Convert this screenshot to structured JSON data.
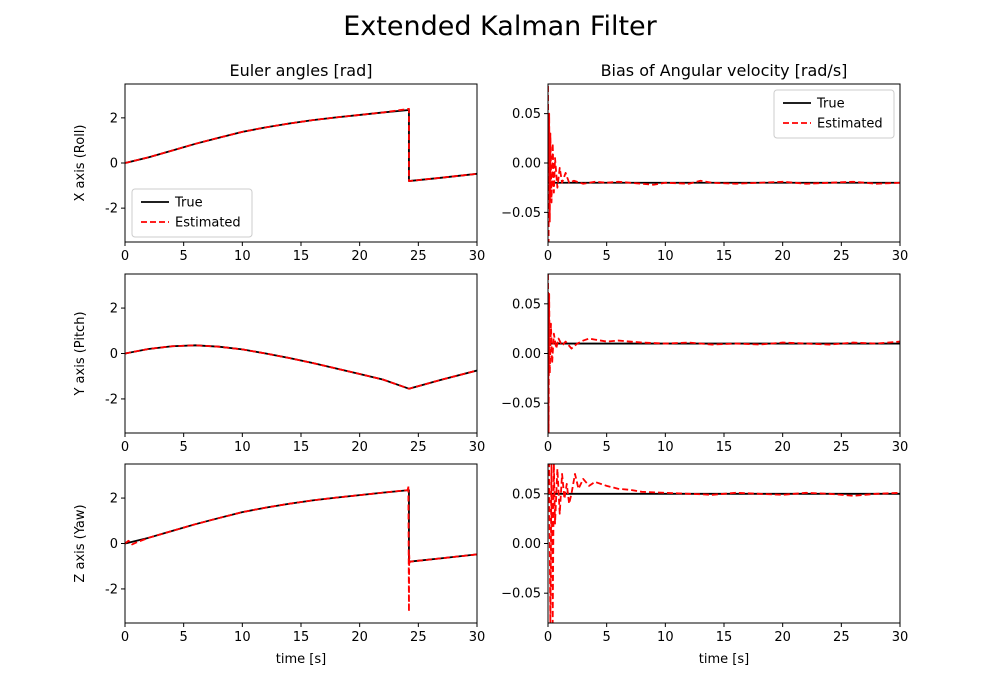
{
  "chart_data": {
    "type": "line",
    "title": "Extended Kalman Filter",
    "legend": [
      "True",
      "Estimated"
    ],
    "colors": {
      "True": "#000000",
      "Estimated": "#ff0000"
    },
    "panels": [
      {
        "id": "euler-x",
        "column": "Euler angles [rad]",
        "ylabel": "X axis (Roll)",
        "xlabel": "",
        "xlim": [
          0,
          30
        ],
        "ylim": [
          -3.5,
          3.5
        ],
        "xticks": [
          "0",
          "5",
          "10",
          "15",
          "20",
          "25",
          "30"
        ],
        "yticks": [
          "-2",
          "0",
          "2"
        ],
        "legend_location": "lower left",
        "series": [
          {
            "name": "True",
            "style": "solid",
            "x": [
              0,
              2,
              4,
              6,
              8,
              10,
              12,
              14,
              16,
              18,
              20,
              22,
              24.2,
              24.2,
              27,
              30
            ],
            "y": [
              0,
              0.25,
              0.55,
              0.85,
              1.12,
              1.38,
              1.58,
              1.75,
              1.9,
              2.02,
              2.13,
              2.24,
              2.35,
              -0.8,
              -0.65,
              -0.48
            ]
          },
          {
            "name": "Estimated",
            "style": "dashed",
            "x": [
              0,
              2,
              4,
              6,
              8,
              10,
              12,
              14,
              16,
              18,
              20,
              22,
              24.2,
              24.2,
              27,
              30
            ],
            "y": [
              0,
              0.25,
              0.55,
              0.85,
              1.12,
              1.38,
              1.58,
              1.75,
              1.9,
              2.02,
              2.13,
              2.24,
              2.4,
              -0.8,
              -0.65,
              -0.48
            ]
          }
        ]
      },
      {
        "id": "euler-y",
        "column": "Euler angles [rad]",
        "ylabel": "Y axis (Pitch)",
        "xlabel": "",
        "xlim": [
          0,
          30
        ],
        "ylim": [
          -3.5,
          3.5
        ],
        "xticks": [
          "0",
          "5",
          "10",
          "15",
          "20",
          "25",
          "30"
        ],
        "yticks": [
          "-2",
          "0",
          "2"
        ],
        "series": [
          {
            "name": "True",
            "style": "solid",
            "x": [
              0,
              2,
              4,
              6,
              8,
              10,
              12,
              14,
              16,
              18,
              20,
              22,
              24.2,
              27,
              30
            ],
            "y": [
              0,
              0.2,
              0.32,
              0.36,
              0.3,
              0.18,
              0,
              -0.2,
              -0.42,
              -0.66,
              -0.9,
              -1.15,
              -1.55,
              -1.15,
              -0.75
            ]
          },
          {
            "name": "Estimated",
            "style": "dashed",
            "x": [
              0,
              2,
              4,
              6,
              8,
              10,
              12,
              14,
              16,
              18,
              20,
              22,
              24.2,
              27,
              30
            ],
            "y": [
              0,
              0.2,
              0.32,
              0.36,
              0.3,
              0.18,
              0,
              -0.2,
              -0.42,
              -0.66,
              -0.9,
              -1.15,
              -1.55,
              -1.15,
              -0.75
            ]
          }
        ]
      },
      {
        "id": "euler-z",
        "column": "Euler angles [rad]",
        "ylabel": "Z axis (Yaw)",
        "xlabel": "time [s]",
        "xlim": [
          0,
          30
        ],
        "ylim": [
          -3.5,
          3.5
        ],
        "xticks": [
          "0",
          "5",
          "10",
          "15",
          "20",
          "25",
          "30"
        ],
        "yticks": [
          "-2",
          "0",
          "2"
        ],
        "series": [
          {
            "name": "True",
            "style": "solid",
            "x": [
              0,
              2,
              4,
              6,
              8,
              10,
              12,
              14,
              16,
              18,
              20,
              22,
              24.2,
              24.2,
              27,
              30
            ],
            "y": [
              0,
              0.25,
              0.55,
              0.85,
              1.12,
              1.38,
              1.58,
              1.75,
              1.9,
              2.02,
              2.13,
              2.24,
              2.35,
              -0.8,
              -0.65,
              -0.48
            ]
          },
          {
            "name": "Estimated",
            "style": "dashed",
            "x": [
              0,
              0.3,
              0.6,
              1,
              2,
              4,
              6,
              8,
              10,
              12,
              14,
              16,
              18,
              20,
              22,
              24.1,
              24.15,
              24.2,
              24.22,
              24.25,
              24.3,
              27,
              30
            ],
            "y": [
              0,
              0.12,
              -0.04,
              0.05,
              0.25,
              0.55,
              0.85,
              1.12,
              1.38,
              1.58,
              1.75,
              1.9,
              2.02,
              2.13,
              2.24,
              2.35,
              2.55,
              -3.0,
              -0.5,
              -0.85,
              -0.8,
              -0.65,
              -0.48
            ]
          }
        ]
      },
      {
        "id": "bias-x",
        "column": "Bias of Angular velocity [rad/s]",
        "ylabel": "",
        "xlabel": "",
        "xlim": [
          0,
          30
        ],
        "ylim": [
          -0.08,
          0.08
        ],
        "xticks": [
          "0",
          "5",
          "10",
          "15",
          "20",
          "25",
          "30"
        ],
        "yticks": [
          "−0.05",
          "0.00",
          "0.05"
        ],
        "legend_location": "upper right",
        "series": [
          {
            "name": "True",
            "style": "solid",
            "x": [
              0,
              30
            ],
            "y": [
              -0.02,
              -0.02
            ]
          },
          {
            "name": "Estimated",
            "style": "dashed",
            "x": [
              0,
              0.05,
              0.1,
              0.15,
              0.2,
              0.3,
              0.4,
              0.5,
              0.6,
              0.8,
              1,
              1.2,
              1.5,
              1.8,
              2.2,
              3,
              4,
              5,
              6,
              8,
              9,
              10,
              12,
              13,
              14,
              16,
              18,
              20,
              22,
              24,
              26,
              28,
              30
            ],
            "y": [
              0.078,
              -0.08,
              0.05,
              -0.06,
              0.03,
              -0.04,
              0.02,
              -0.03,
              0.005,
              -0.025,
              -0.005,
              -0.02,
              -0.01,
              -0.02,
              -0.018,
              -0.021,
              -0.019,
              -0.02,
              -0.019,
              -0.021,
              -0.022,
              -0.02,
              -0.021,
              -0.018,
              -0.02,
              -0.021,
              -0.02,
              -0.019,
              -0.021,
              -0.02,
              -0.019,
              -0.021,
              -0.02
            ]
          }
        ]
      },
      {
        "id": "bias-y",
        "column": "Bias of Angular velocity [rad/s]",
        "ylabel": "",
        "xlabel": "",
        "xlim": [
          0,
          30
        ],
        "ylim": [
          -0.08,
          0.08
        ],
        "xticks": [
          "0",
          "5",
          "10",
          "15",
          "20",
          "25",
          "30"
        ],
        "yticks": [
          "−0.05",
          "0.00",
          "0.05"
        ],
        "series": [
          {
            "name": "True",
            "style": "solid",
            "x": [
              0,
              30
            ],
            "y": [
              0.01,
              0.01
            ]
          },
          {
            "name": "Estimated",
            "style": "dashed",
            "x": [
              0,
              0.05,
              0.1,
              0.15,
              0.25,
              0.35,
              0.5,
              0.7,
              0.9,
              1.2,
              1.5,
              2,
              2.5,
              3,
              3.5,
              4,
              5,
              6,
              8,
              10,
              12,
              14,
              16,
              18,
              20,
              22,
              24,
              26,
              28,
              30
            ],
            "y": [
              0.08,
              -0.08,
              0.06,
              -0.02,
              0.03,
              -0.01,
              0.02,
              0.005,
              0.015,
              0.008,
              0.012,
              0.005,
              0.01,
              0.013,
              0.015,
              0.014,
              0.012,
              0.013,
              0.011,
              0.01,
              0.011,
              0.009,
              0.01,
              0.009,
              0.011,
              0.01,
              0.009,
              0.011,
              0.01,
              0.012
            ]
          }
        ]
      },
      {
        "id": "bias-z",
        "column": "Bias of Angular velocity [rad/s]",
        "ylabel": "",
        "xlabel": "time [s]",
        "xlim": [
          0,
          30
        ],
        "ylim": [
          -0.08,
          0.08
        ],
        "xticks": [
          "0",
          "5",
          "10",
          "15",
          "20",
          "25",
          "30"
        ],
        "yticks": [
          "−0.05",
          "0.00",
          "0.05"
        ],
        "series": [
          {
            "name": "True",
            "style": "solid",
            "x": [
              0,
              30
            ],
            "y": [
              0.05,
              0.05
            ]
          },
          {
            "name": "Estimated",
            "style": "dashed",
            "x": [
              0,
              0.1,
              0.2,
              0.3,
              0.4,
              0.5,
              0.6,
              0.8,
              1,
              1.2,
              1.4,
              1.6,
              1.8,
              2,
              2.3,
              2.6,
              3,
              3.5,
              4,
              5,
              6,
              7,
              8,
              10,
              12,
              14,
              16,
              18,
              20,
              22,
              24,
              26,
              28,
              30
            ],
            "y": [
              0.05,
              0.08,
              -0.08,
              0.08,
              -0.08,
              0.08,
              0.02,
              0.075,
              0.03,
              0.07,
              0.045,
              0.06,
              0.04,
              0.05,
              0.07,
              0.055,
              0.065,
              0.058,
              0.062,
              0.058,
              0.055,
              0.054,
              0.052,
              0.051,
              0.05,
              0.049,
              0.051,
              0.05,
              0.049,
              0.051,
              0.05,
              0.048,
              0.05,
              0.051
            ]
          }
        ]
      }
    ]
  }
}
